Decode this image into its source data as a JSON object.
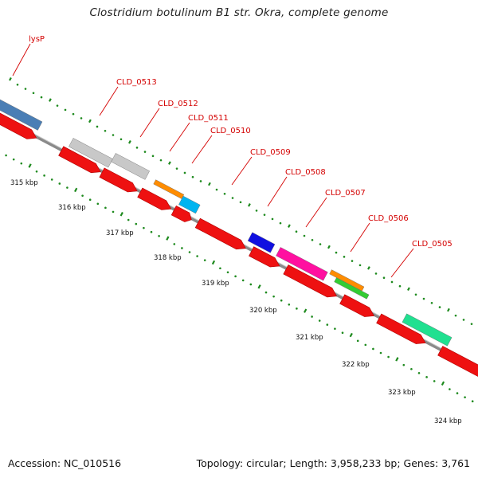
{
  "title": "Clostridium botulinum B1 str. Okra, complete genome",
  "footer": {
    "accession": "Accession: NC_010516",
    "summary": "Topology: circular; Length: 3,958,233 bp; Genes: 3,761"
  },
  "colors": {
    "backbone": "#8a8a8a",
    "tick": "#1e8a1e",
    "label": "#d40000",
    "cds": "#ee1111"
  },
  "genes": [
    {
      "name": "lysP",
      "color": "#4a7eb5"
    },
    {
      "name": "CLD_0513",
      "color": "#c8c8c8"
    },
    {
      "name": "CLD_0512",
      "color": "#c8c8c8"
    },
    {
      "name": "CLD_0511",
      "color": "#ff8c00"
    },
    {
      "name": "CLD_0510",
      "color": "#00b4f0"
    },
    {
      "name": "CLD_0509",
      "color": "#1010e0"
    },
    {
      "name": "CLD_0508",
      "color": "#ff10a0"
    },
    {
      "name": "CLD_0507",
      "color": "#ff8c00"
    },
    {
      "name": "CLD_0506",
      "color": "#33cc33"
    },
    {
      "name": "CLD_0505",
      "color": "#20e090"
    }
  ],
  "kbp_ticks": [
    "315 kbp",
    "316 kbp",
    "317 kbp",
    "318 kbp",
    "319 kbp",
    "320 kbp",
    "321 kbp",
    "322 kbp",
    "323 kbp",
    "324 kbp"
  ]
}
